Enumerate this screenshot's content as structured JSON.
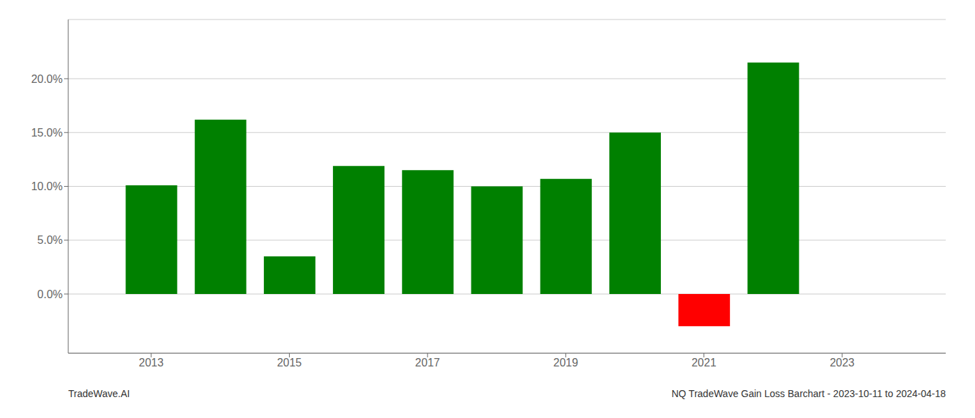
{
  "chart_data": {
    "type": "bar",
    "x": [
      2013,
      2014,
      2015,
      2016,
      2017,
      2018,
      2019,
      2020,
      2021,
      2022
    ],
    "values": [
      0.101,
      0.162,
      0.035,
      0.119,
      0.115,
      0.1,
      0.107,
      0.15,
      -0.03,
      0.215
    ],
    "colors": [
      "#008000",
      "#008000",
      "#008000",
      "#008000",
      "#008000",
      "#008000",
      "#008000",
      "#008000",
      "#ff0000",
      "#008000"
    ],
    "xlim": [
      2011.8,
      2024.5
    ],
    "xticks": [
      2013,
      2015,
      2017,
      2019,
      2021,
      2023
    ],
    "ylim": [
      -0.055,
      0.255
    ],
    "yticks": [
      {
        "value": 0.0,
        "label": "0.0%"
      },
      {
        "value": 0.05,
        "label": "5.0%"
      },
      {
        "value": 0.1,
        "label": "10.0%"
      },
      {
        "value": 0.15,
        "label": "15.0%"
      },
      {
        "value": 0.2,
        "label": "20.0%"
      }
    ],
    "grid": true,
    "annotations": [
      "TradeWave.AI",
      "NQ TradeWave Gain Loss Barchart - 2023-10-11 to 2024-04-18"
    ]
  }
}
